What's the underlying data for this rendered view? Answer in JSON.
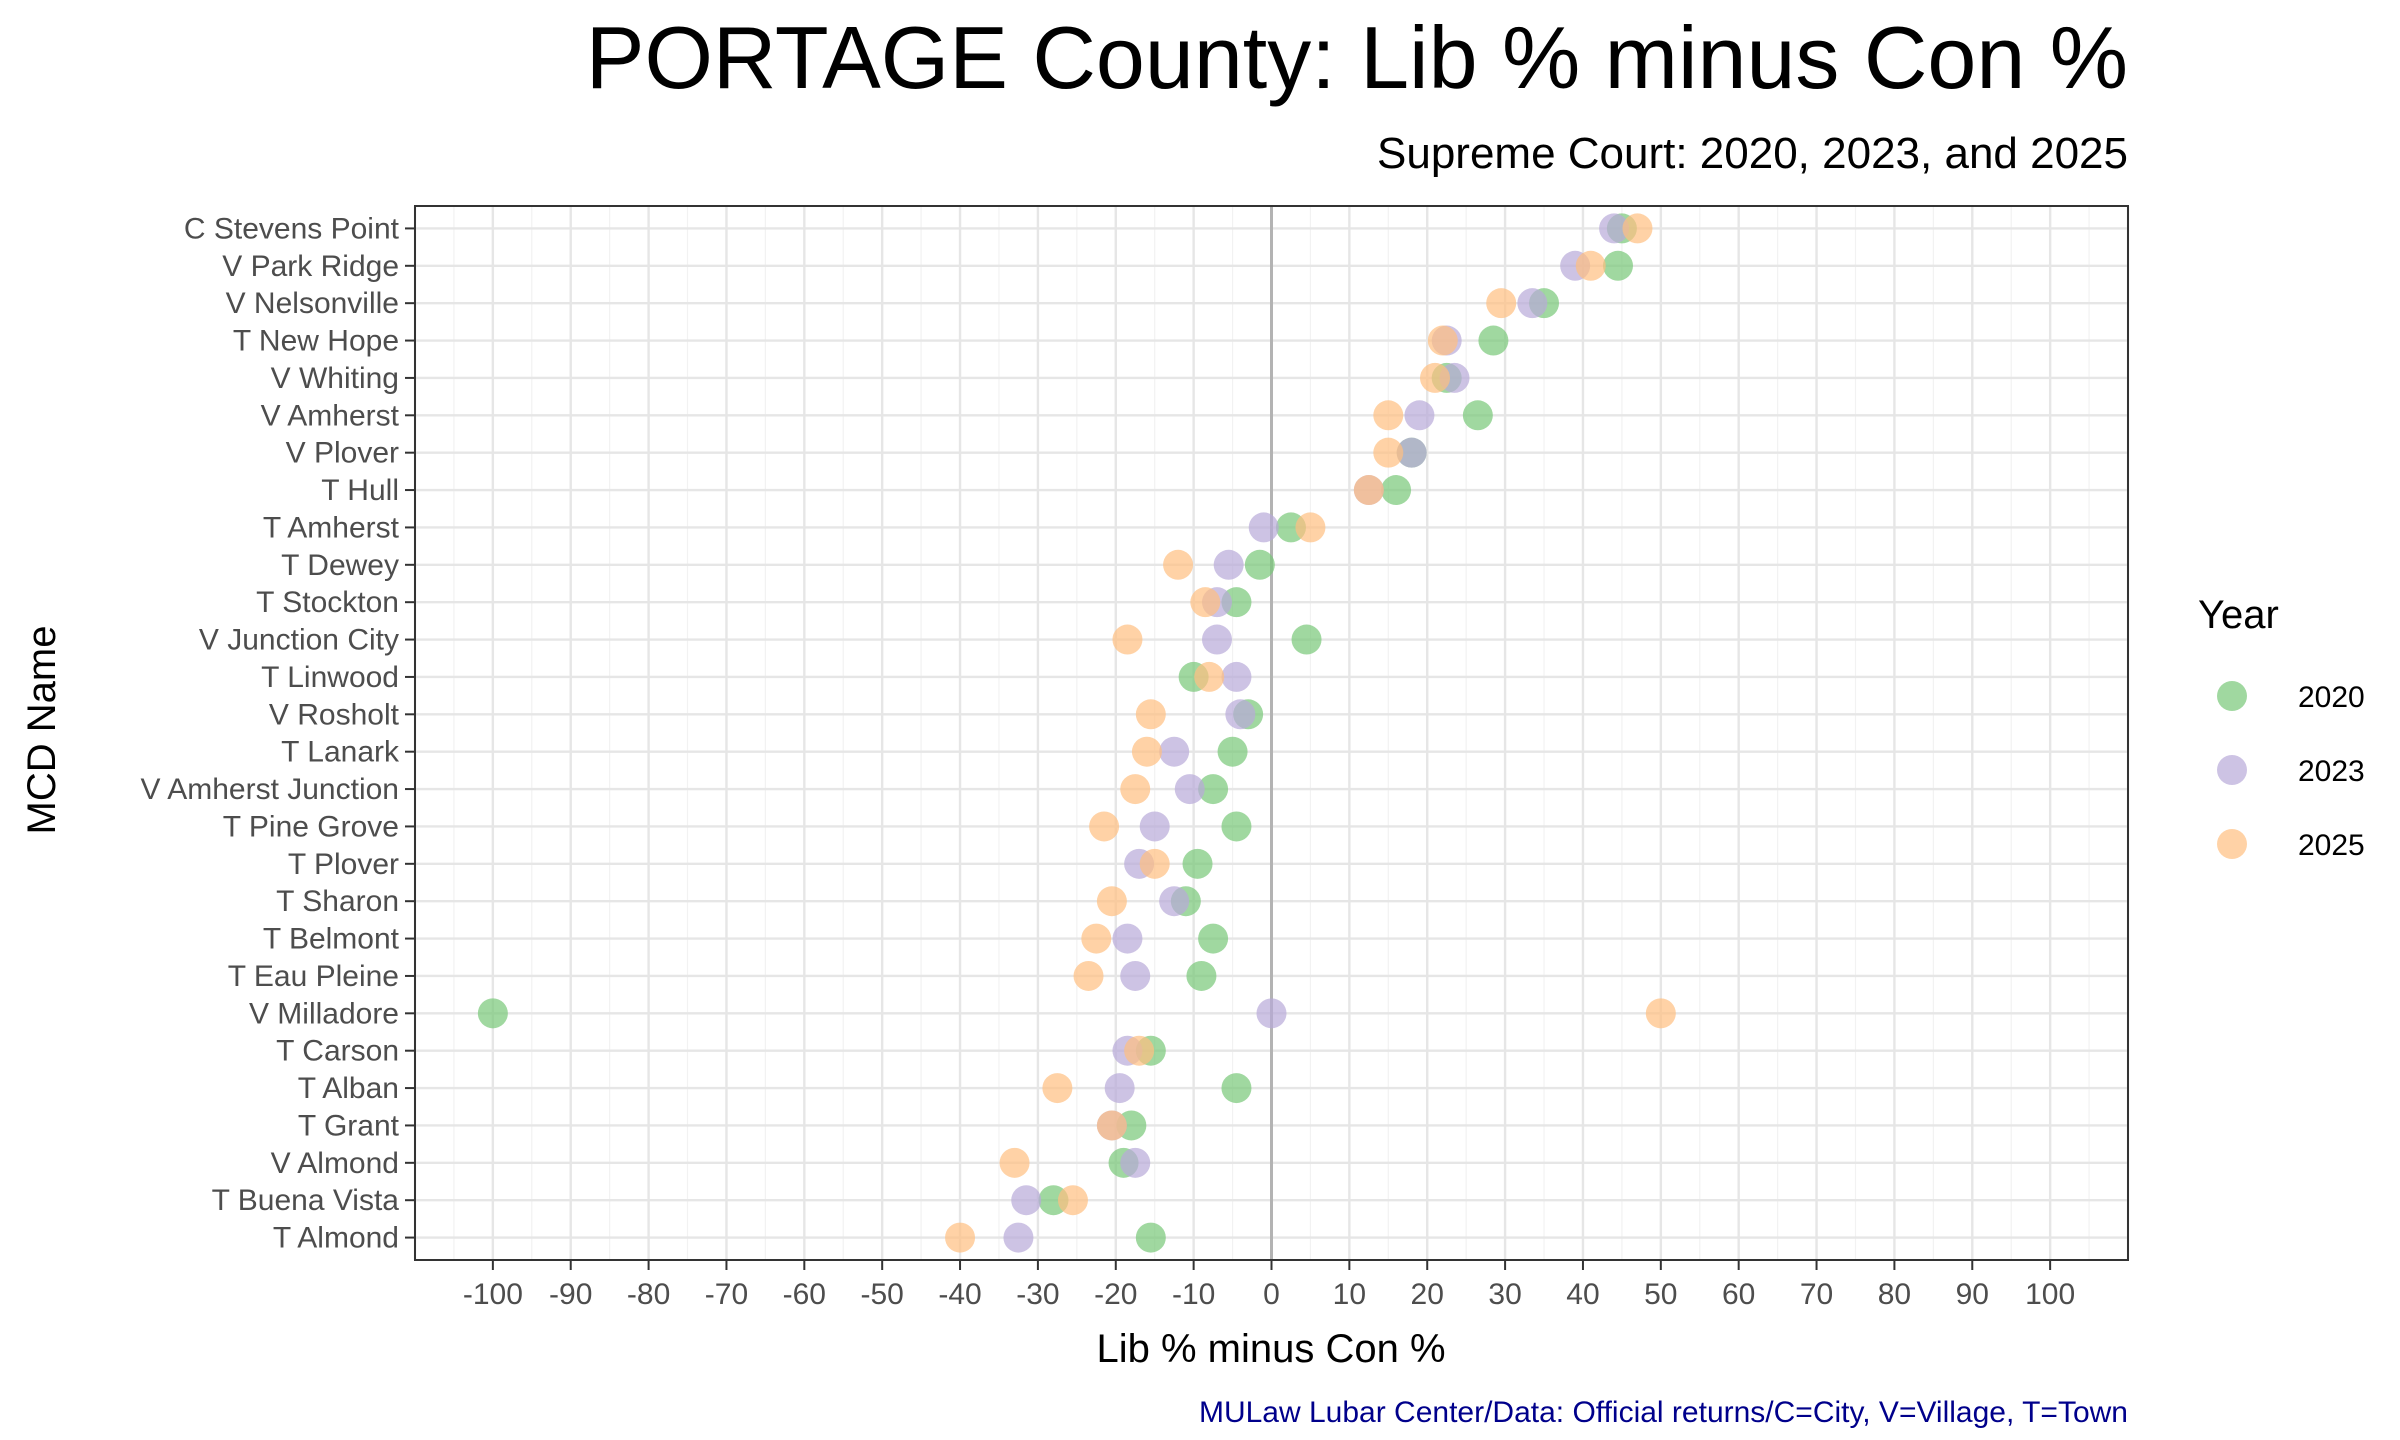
{
  "chart_data": {
    "type": "scatter",
    "title": "PORTAGE County: Lib % minus Con %",
    "subtitle": "Supreme Court: 2020, 2023, and 2025",
    "xlabel": "Lib % minus Con %",
    "ylabel": "MCD Name",
    "caption": "MULaw Lubar Center/Data: Official returns/C=City, V=Village, T=Town",
    "xlim": [
      -110,
      110
    ],
    "xticks": [
      "-100",
      "-90",
      "-80",
      "-70",
      "-60",
      "-50",
      "-40",
      "-30",
      "-20",
      "-10",
      "0",
      "10",
      "20",
      "30",
      "40",
      "50",
      "60",
      "70",
      "80",
      "90",
      "100"
    ],
    "grid": true,
    "legend": {
      "title": "Year",
      "placement": "right"
    },
    "categories": [
      "C Stevens Point",
      "V Park Ridge",
      "V Nelsonville",
      "T New Hope",
      "V Whiting",
      "V Amherst",
      "V Plover",
      "T Hull",
      "T Amherst",
      "T Dewey",
      "T Stockton",
      "V Junction City",
      "T Linwood",
      "V Rosholt",
      "T Lanark",
      "V Amherst Junction",
      "T Pine Grove",
      "T Plover",
      "T Sharon",
      "T Belmont",
      "T Eau Pleine",
      "V Milladore",
      "T Carson",
      "T Alban",
      "T Grant",
      "V Almond",
      "T Buena Vista",
      "T Almond"
    ],
    "series": [
      {
        "name": "2020",
        "color": "#77c777",
        "values": [
          45,
          44.5,
          35,
          28.5,
          22.5,
          26.5,
          18,
          16,
          2.5,
          -1.5,
          -4.5,
          4.5,
          -10,
          -3,
          -5,
          -7.5,
          -4.5,
          -9.5,
          -11,
          -7.5,
          -9,
          -100,
          -15.5,
          -4.5,
          -18,
          -19,
          -28,
          -15.5
        ]
      },
      {
        "name": "2023",
        "color": "#b8a9d9",
        "values": [
          44,
          39,
          33.5,
          22.5,
          23.5,
          19,
          18,
          12.5,
          -1,
          -5.5,
          -7,
          -7,
          -4.5,
          -4,
          -12.5,
          -10.5,
          -15,
          -17,
          -12.5,
          -18.5,
          -17.5,
          0,
          -18.5,
          -19.5,
          -20.5,
          -17.5,
          -31.5,
          -32.5
        ]
      },
      {
        "name": "2025",
        "color": "#ffbf80",
        "values": [
          47,
          41,
          29.5,
          22,
          21,
          15,
          15,
          12.5,
          5,
          -12,
          -8.5,
          -18.5,
          -8,
          -15.5,
          -16,
          -17.5,
          -21.5,
          -15,
          -20.5,
          -22.5,
          -23.5,
          50,
          -17,
          -27.5,
          -20.5,
          -33,
          -25.5,
          -40
        ]
      }
    ]
  }
}
